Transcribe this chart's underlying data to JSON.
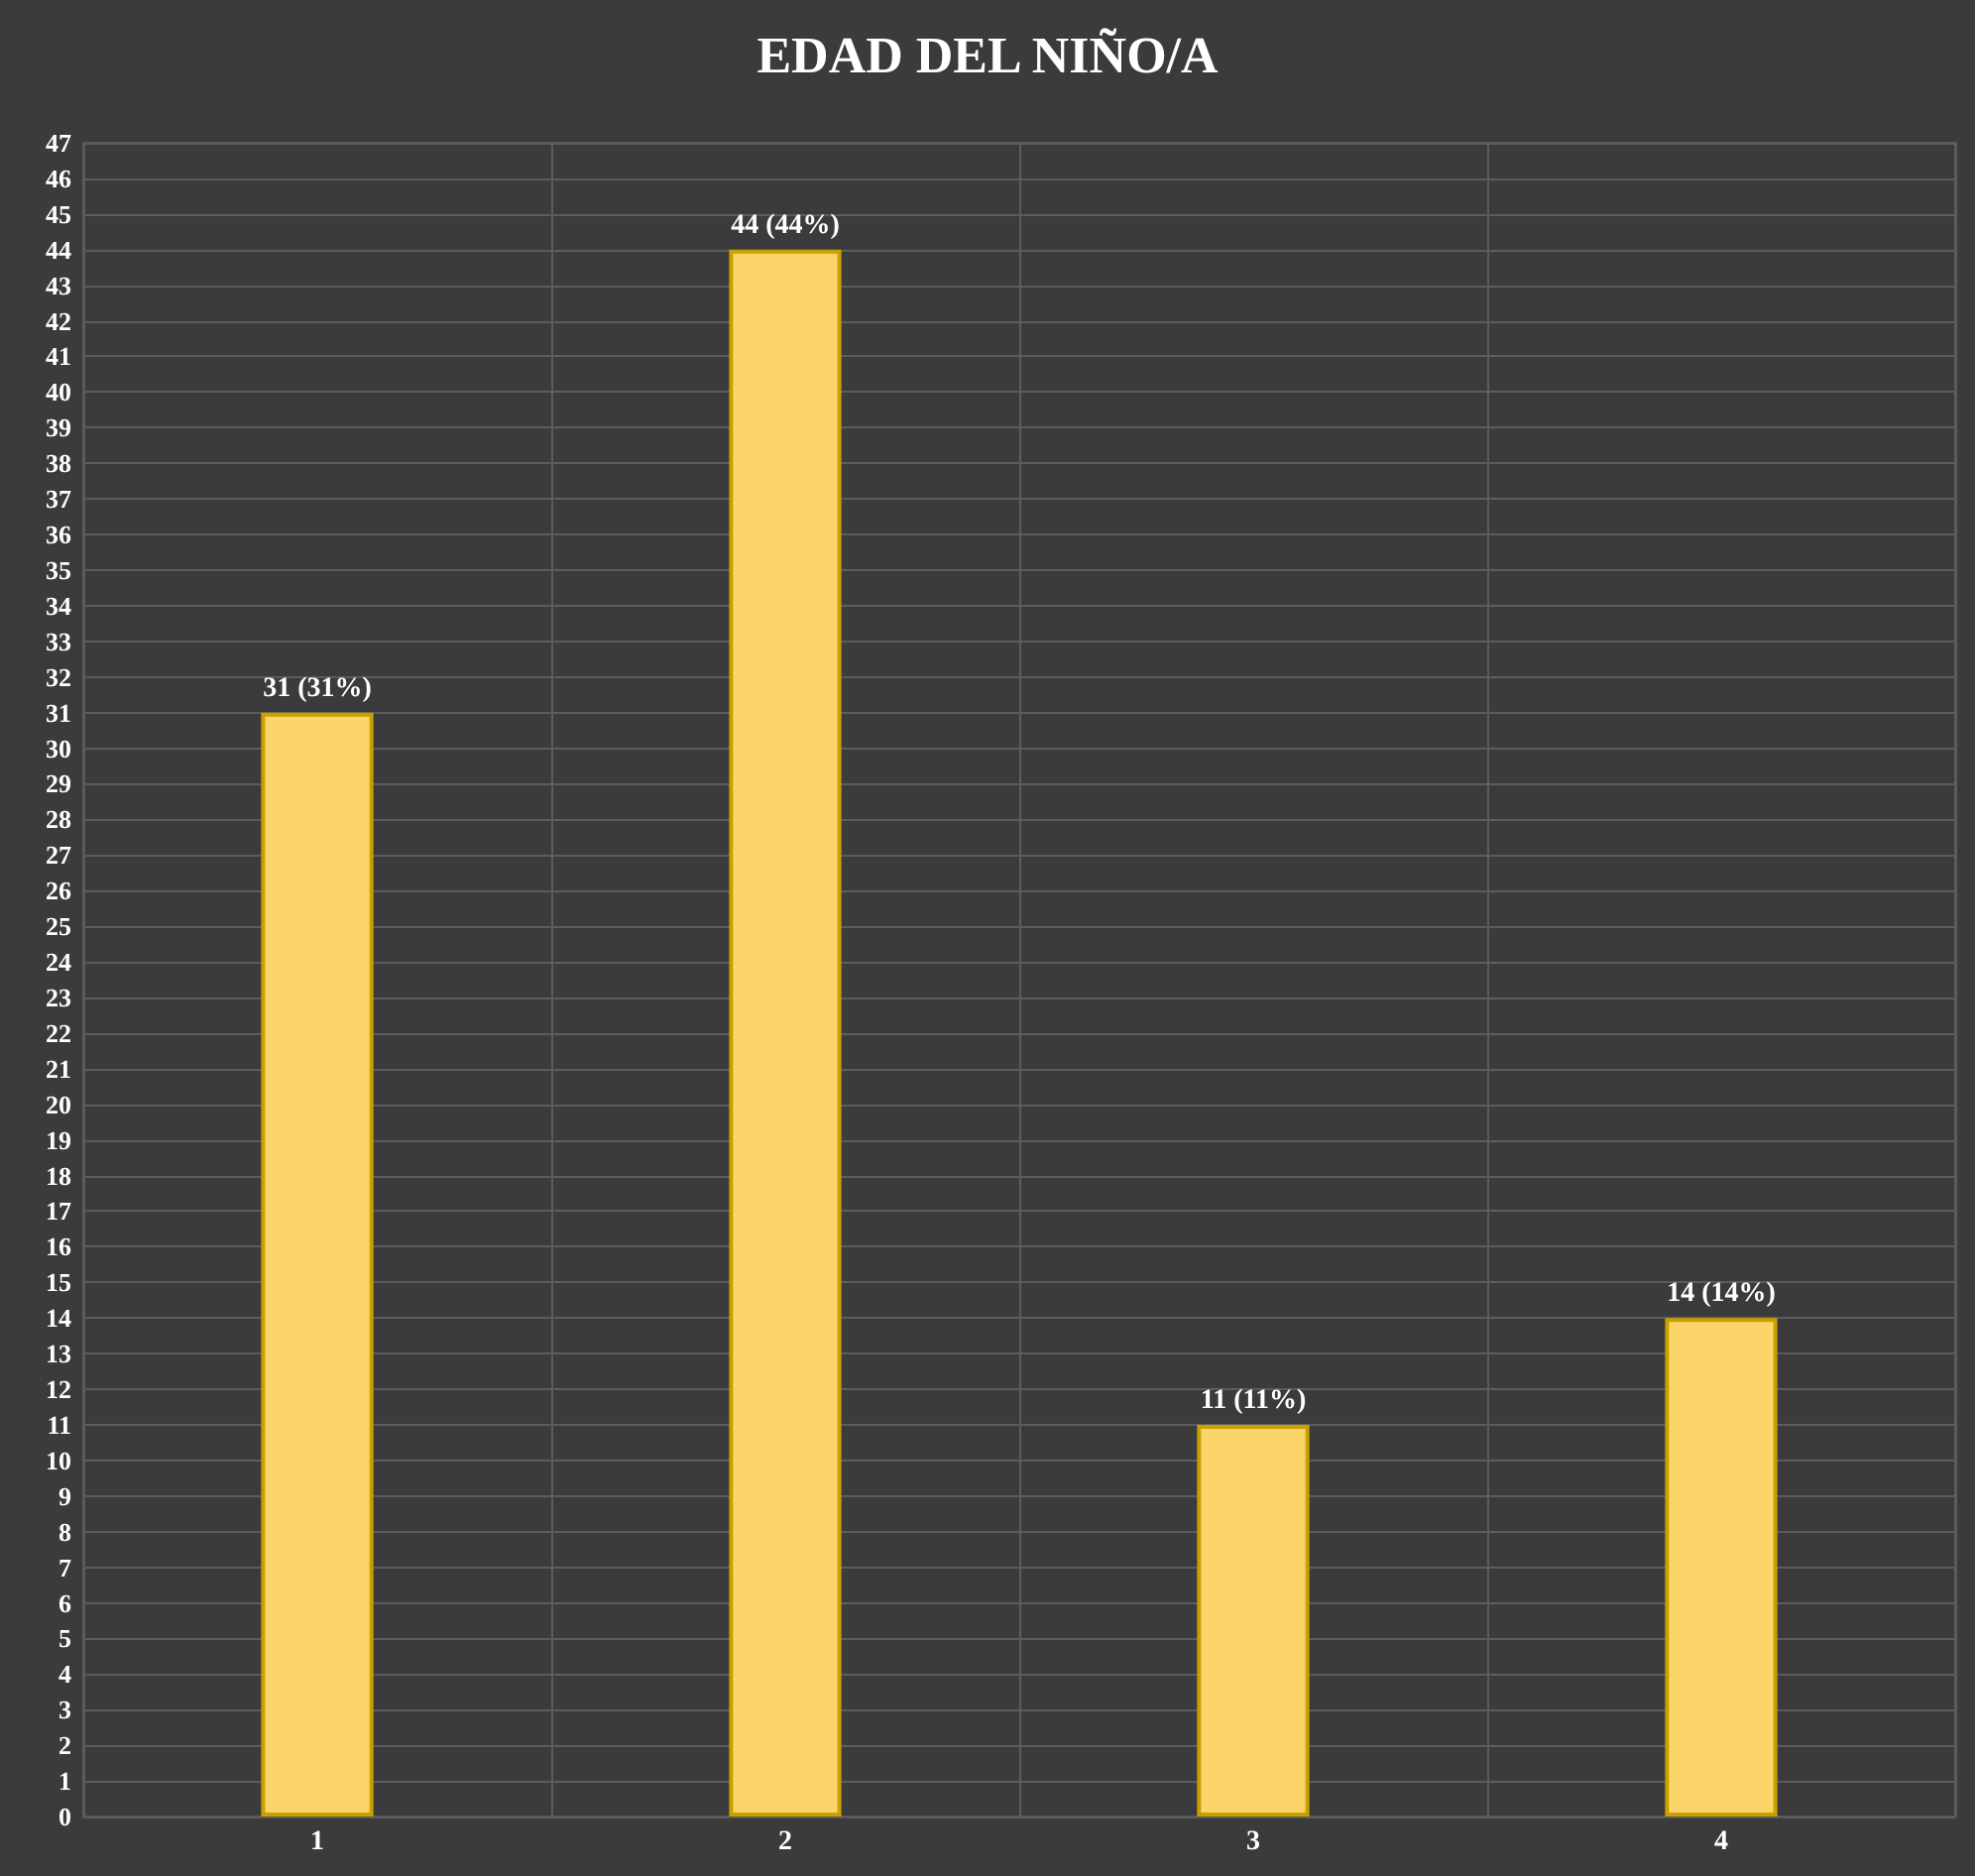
{
  "chart_data": {
    "type": "bar",
    "title": "EDAD DEL NIÑO/A",
    "categories": [
      "1",
      "2",
      "3",
      "4"
    ],
    "values": [
      31,
      44,
      11,
      14
    ],
    "value_labels": [
      "31 (31%)",
      "44 (44%)",
      "11 (11%)",
      "14 (14%)"
    ],
    "color": "#fcd56a",
    "ylim": [
      0,
      47
    ],
    "yticks": [
      0,
      1,
      2,
      3,
      4,
      5,
      6,
      7,
      8,
      9,
      10,
      11,
      12,
      13,
      14,
      15,
      16,
      17,
      18,
      19,
      20,
      21,
      22,
      23,
      24,
      25,
      26,
      27,
      28,
      29,
      30,
      31,
      32,
      33,
      34,
      35,
      36,
      37,
      38,
      39,
      40,
      41,
      42,
      43,
      44,
      45,
      46,
      47
    ],
    "grid": true
  }
}
